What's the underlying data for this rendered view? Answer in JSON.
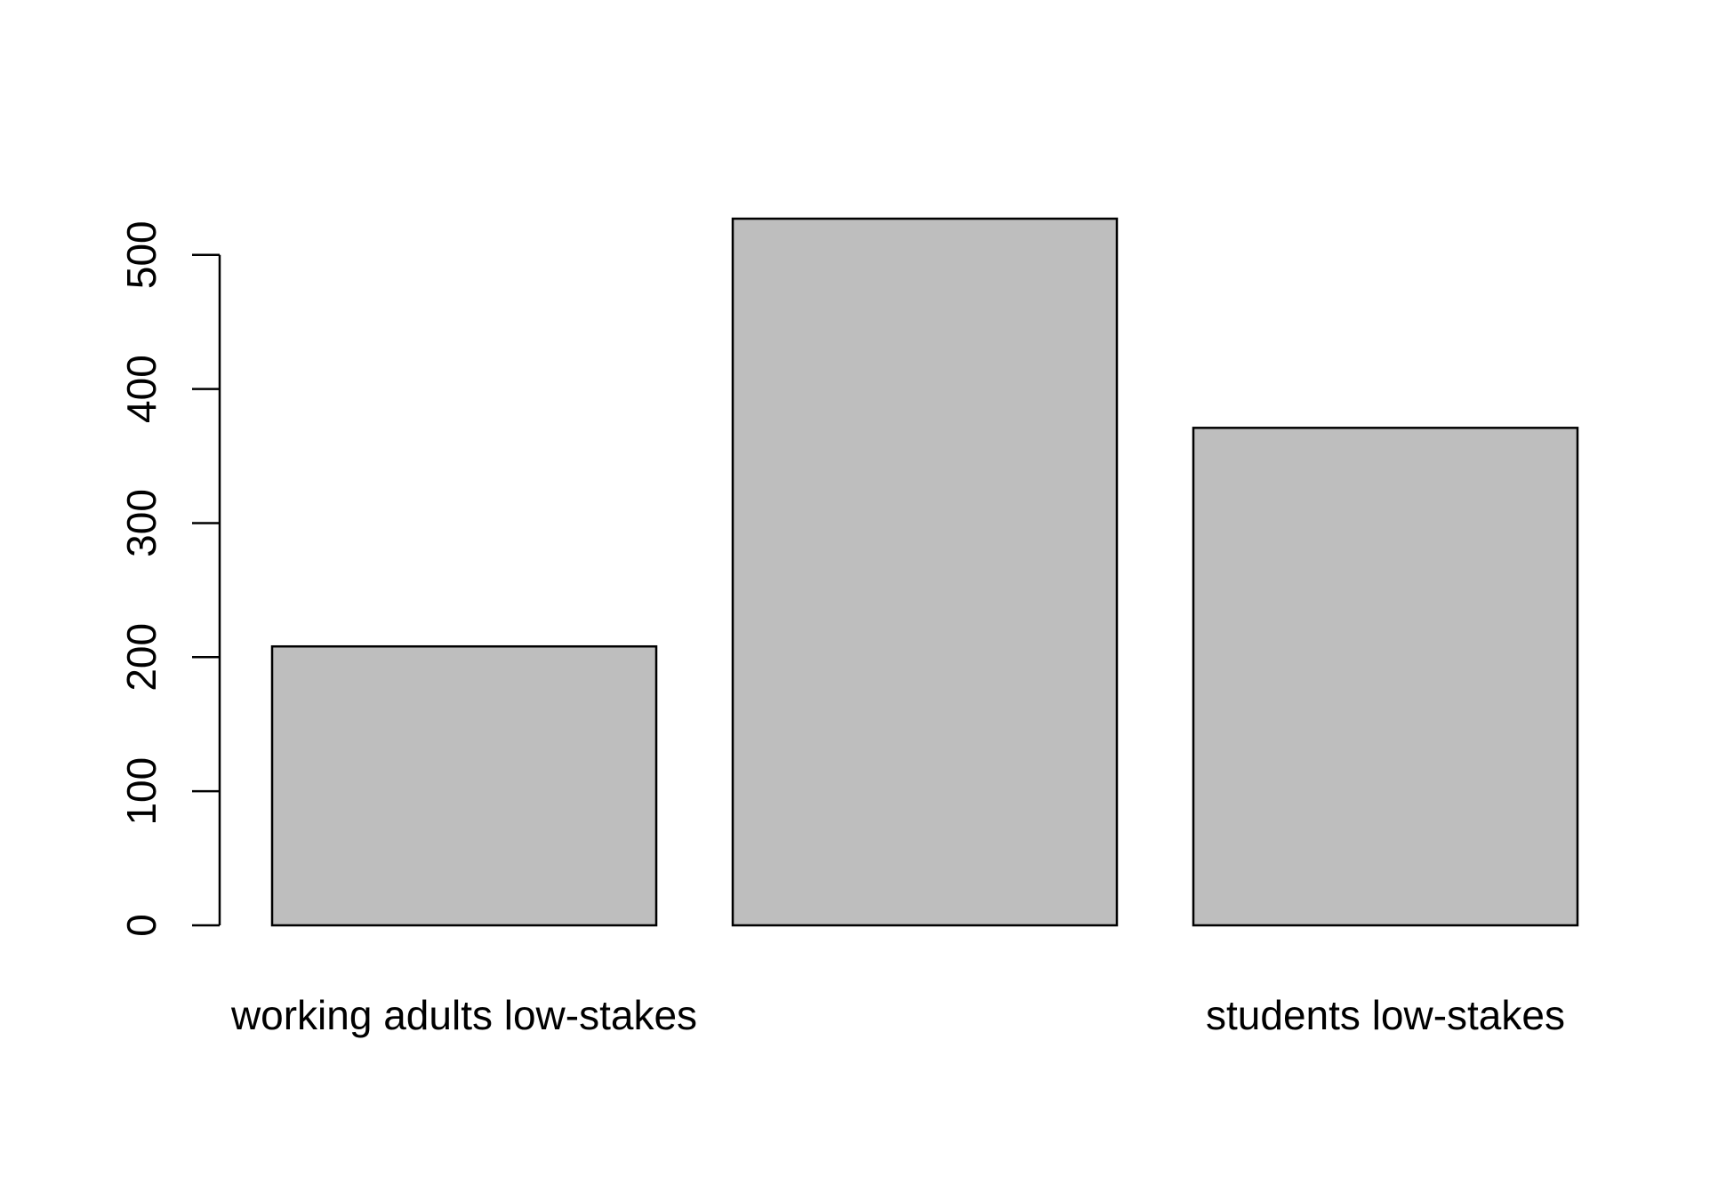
{
  "chart_data": {
    "type": "bar",
    "categories": [
      "working adults low-stakes",
      "",
      "students low-stakes"
    ],
    "values": [
      208,
      527,
      371
    ],
    "ylim": [
      0,
      527
    ],
    "yticks": [
      0,
      100,
      200,
      300,
      400,
      500
    ],
    "bar_color": "#bebebe",
    "border_color": "#000000",
    "title": "",
    "xlabel": "",
    "ylabel": "",
    "grid": false
  }
}
